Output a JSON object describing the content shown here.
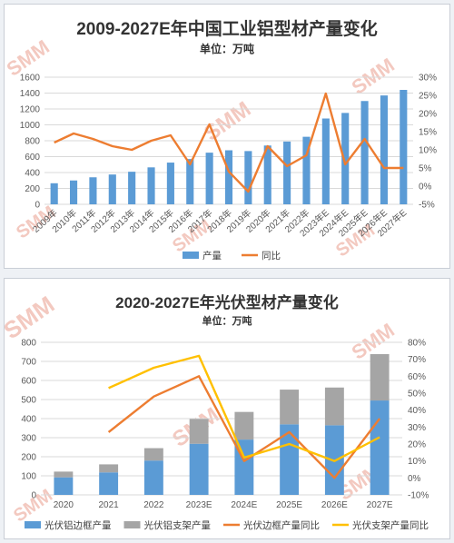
{
  "colors": {
    "blue": "#5b9bd5",
    "orange": "#ed7d31",
    "gray": "#a5a5a5",
    "yellow": "#ffc000",
    "grid": "#d9d9d9"
  },
  "watermark": "SMM",
  "chart_data": [
    {
      "type": "bar",
      "title": "2009-2027E年中国工业铝型材产量变化",
      "subtitle": "单位：万吨",
      "categories": [
        "2009年",
        "2010年",
        "2011年",
        "2012年",
        "2013年",
        "2014年",
        "2015年",
        "2016年",
        "2017年",
        "2018年",
        "2019年",
        "2020年",
        "2021年",
        "2022年",
        "2023年E",
        "2024年E",
        "2025年E",
        "2026年E",
        "2027年E"
      ],
      "series": [
        {
          "name": "产量",
          "kind": "bar",
          "axis": "left",
          "color": "#5b9bd5",
          "values": [
            265,
            300,
            340,
            375,
            410,
            465,
            525,
            570,
            650,
            680,
            670,
            740,
            790,
            850,
            1080,
            1150,
            1300,
            1370,
            1440
          ]
        },
        {
          "name": "同比",
          "kind": "line",
          "axis": "right",
          "color": "#ed7d31",
          "values": [
            12,
            14.5,
            13,
            11,
            10,
            12.5,
            14,
            6,
            17,
            4,
            -1.5,
            11,
            5.5,
            8.5,
            25.5,
            6,
            13,
            5,
            5
          ]
        }
      ],
      "yleft": {
        "min": 0,
        "max": 1600,
        "ticks": [
          "0",
          "200",
          "400",
          "600",
          "800",
          "1000",
          "1200",
          "1400",
          "1600"
        ]
      },
      "yright": {
        "min": -5,
        "max": 30,
        "ticks": [
          "-5%",
          "0%",
          "5%",
          "10%",
          "15%",
          "20%",
          "25%",
          "30%"
        ]
      },
      "legend": [
        "产量",
        "同比"
      ],
      "legend_position": "bottom",
      "grid": true
    },
    {
      "type": "bar",
      "title": "2020-2027E年光伏型材产量变化",
      "subtitle": "单位：万吨",
      "categories": [
        "2020",
        "2021",
        "2022",
        "2023E",
        "2024E",
        "2025E",
        "2026E",
        "2027E"
      ],
      "series": [
        {
          "name": "光伏铝边框产量",
          "kind": "bar",
          "stack": "a",
          "axis": "left",
          "color": "#5b9bd5",
          "values": [
            92,
            118,
            180,
            268,
            290,
            370,
            365,
            495
          ]
        },
        {
          "name": "光伏铝支架产量",
          "kind": "bar",
          "stack": "a",
          "axis": "left",
          "color": "#a5a5a5",
          "values": [
            30,
            42,
            65,
            130,
            145,
            182,
            198,
            243
          ]
        },
        {
          "name": "光伏边框产量同比",
          "kind": "line",
          "axis": "right",
          "color": "#ed7d31",
          "values": [
            null,
            27,
            48,
            60,
            10,
            27,
            0,
            35
          ]
        },
        {
          "name": "光伏支架产量同比",
          "kind": "line",
          "axis": "right",
          "color": "#ffc000",
          "values": [
            null,
            53,
            65,
            72,
            12,
            20,
            10,
            24
          ]
        }
      ],
      "yleft": {
        "min": 0,
        "max": 800,
        "ticks": [
          "0",
          "100",
          "200",
          "300",
          "400",
          "500",
          "600",
          "700",
          "800"
        ]
      },
      "yright": {
        "min": -10,
        "max": 80,
        "ticks": [
          "-10%",
          "0%",
          "10%",
          "20%",
          "30%",
          "40%",
          "50%",
          "60%",
          "70%",
          "80%"
        ]
      },
      "legend": [
        "光伏铝边框产量",
        "光伏铝支架产量",
        "光伏边框产量同比",
        "光伏支架产量同比"
      ],
      "legend_position": "bottom",
      "grid": true
    }
  ]
}
